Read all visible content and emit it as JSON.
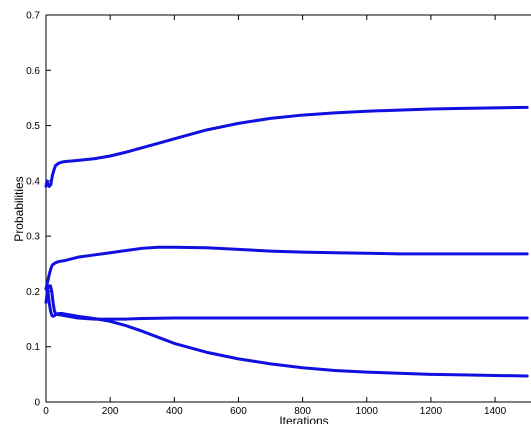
{
  "chart_data": {
    "type": "line",
    "title": "",
    "xlabel": "Iterations",
    "ylabel": "Probabilities",
    "xlim": [
      0,
      1500
    ],
    "ylim": [
      0,
      0.7
    ],
    "xticks": [
      0,
      200,
      400,
      600,
      800,
      1000,
      1200,
      1400
    ],
    "yticks": [
      0,
      0.1,
      0.2,
      0.3,
      0.4,
      0.5,
      0.6,
      0.7
    ],
    "xtick_labels": [
      "0",
      "200",
      "400",
      "600",
      "800",
      "1000",
      "1200",
      "1400"
    ],
    "ytick_labels": [
      "0",
      "0.1",
      "0.2",
      "0.3",
      "0.4",
      "0.5",
      "0.6",
      "0.7"
    ],
    "grid": false,
    "legend": false,
    "line_color": "#1010e0",
    "series": [
      {
        "x": [
          0,
          3,
          6,
          10,
          15,
          20,
          25,
          30,
          40,
          50,
          60,
          80,
          100,
          150,
          200,
          250,
          300,
          350,
          400,
          500,
          600,
          700,
          800,
          900,
          1000,
          1100,
          1200,
          1300,
          1400,
          1500
        ],
        "y": [
          0.39,
          0.4,
          0.395,
          0.39,
          0.393,
          0.41,
          0.42,
          0.428,
          0.432,
          0.434,
          0.435,
          0.436,
          0.437,
          0.44,
          0.445,
          0.452,
          0.46,
          0.468,
          0.476,
          0.492,
          0.504,
          0.513,
          0.519,
          0.523,
          0.526,
          0.528,
          0.53,
          0.531,
          0.532,
          0.533
        ]
      },
      {
        "x": [
          0,
          4,
          8,
          12,
          16,
          20,
          30,
          40,
          60,
          80,
          100,
          150,
          200,
          250,
          300,
          350,
          400,
          500,
          600,
          700,
          800,
          900,
          1000,
          1100,
          1200,
          1300,
          1400,
          1500
        ],
        "y": [
          0.205,
          0.215,
          0.225,
          0.235,
          0.243,
          0.248,
          0.252,
          0.254,
          0.256,
          0.259,
          0.262,
          0.266,
          0.27,
          0.274,
          0.278,
          0.28,
          0.28,
          0.279,
          0.276,
          0.273,
          0.271,
          0.27,
          0.269,
          0.268,
          0.268,
          0.268,
          0.268,
          0.268
        ]
      },
      {
        "x": [
          0,
          3,
          6,
          10,
          14,
          18,
          22,
          26,
          30,
          40,
          50,
          60,
          80,
          100,
          150,
          200,
          250,
          300,
          400,
          500,
          700,
          900,
          1100,
          1300,
          1500
        ],
        "y": [
          0.18,
          0.195,
          0.205,
          0.21,
          0.21,
          0.2,
          0.18,
          0.165,
          0.16,
          0.158,
          0.157,
          0.156,
          0.154,
          0.152,
          0.15,
          0.15,
          0.15,
          0.151,
          0.152,
          0.152,
          0.152,
          0.152,
          0.152,
          0.152,
          0.152
        ]
      },
      {
        "x": [
          0,
          3,
          6,
          10,
          14,
          18,
          22,
          26,
          30,
          40,
          50,
          60,
          80,
          100,
          150,
          200,
          250,
          300,
          350,
          400,
          500,
          600,
          700,
          800,
          900,
          1000,
          1100,
          1200,
          1300,
          1400,
          1500
        ],
        "y": [
          0.205,
          0.21,
          0.2,
          0.18,
          0.165,
          0.157,
          0.155,
          0.156,
          0.158,
          0.16,
          0.16,
          0.159,
          0.157,
          0.155,
          0.151,
          0.146,
          0.138,
          0.128,
          0.117,
          0.106,
          0.09,
          0.078,
          0.069,
          0.062,
          0.057,
          0.054,
          0.052,
          0.05,
          0.049,
          0.048,
          0.047
        ]
      }
    ]
  }
}
